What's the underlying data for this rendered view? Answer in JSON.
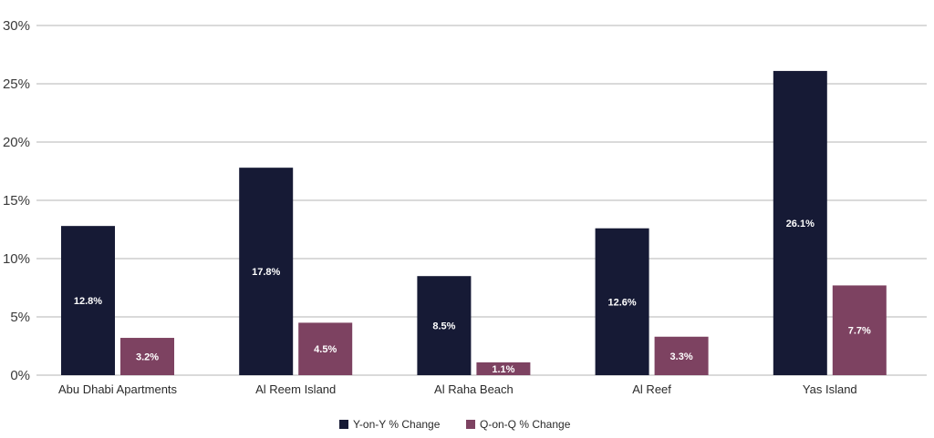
{
  "chart_data": {
    "type": "bar",
    "title": "",
    "xlabel": "",
    "ylabel": "",
    "ylim": [
      0,
      30
    ],
    "yticks": [
      "0%",
      "5%",
      "10%",
      "15%",
      "20%",
      "25%",
      "30%"
    ],
    "grid": true,
    "legend_position": "bottom",
    "categories": [
      "Abu Dhabi Apartments",
      "Al Reem Island",
      "Al Raha Beach",
      "Al Reef",
      "Yas Island"
    ],
    "series": [
      {
        "name": "Y-on-Y % Change",
        "color": "#161a35",
        "values": [
          12.8,
          17.8,
          8.5,
          12.6,
          26.1
        ],
        "labels": [
          "12.8%",
          "17.8%",
          "8.5%",
          "12.6%",
          "26.1%"
        ]
      },
      {
        "name": "Q-on-Q % Change",
        "color": "#7d4261",
        "values": [
          3.2,
          4.5,
          1.1,
          3.3,
          7.7
        ],
        "labels": [
          "3.2%",
          "4.5%",
          "1.1%",
          "3.3%",
          "7.7%"
        ]
      }
    ]
  }
}
